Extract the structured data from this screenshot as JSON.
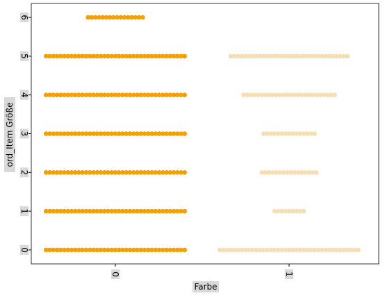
{
  "chart_data": {
    "type": "swarm",
    "x_label": "Farbe",
    "y_label": "ord_Item Größe",
    "categories": [
      "0",
      "1"
    ],
    "colors": [
      "#f5a000",
      "#f5deb3"
    ],
    "counts": [
      [
        39,
        39,
        39,
        39,
        39,
        39,
        16
      ],
      [
        39,
        9,
        16,
        15,
        26,
        33,
        0
      ]
    ],
    "ylim": [
      -0.36,
      6.36
    ],
    "yticks": [
      0,
      1,
      2,
      3,
      4,
      5,
      6
    ]
  }
}
